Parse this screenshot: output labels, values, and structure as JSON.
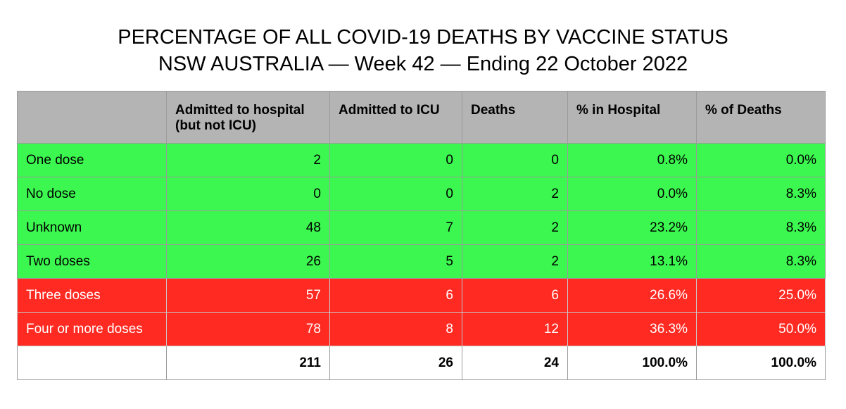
{
  "title": {
    "line1": "PERCENTAGE OF ALL COVID-19 DEATHS BY VACCINE STATUS",
    "line2": "NSW AUSTRALIA — Week 42 — Ending 22 October 2022"
  },
  "colors": {
    "header_bg": "#b4b4b4",
    "green_row": "#3cf74f",
    "red_row": "#ff2a22"
  },
  "table": {
    "columns": [
      "",
      "Admitted to hospital (but not ICU)",
      "Admitted to ICU",
      "Deaths",
      "% in Hospital",
      "% of Deaths"
    ],
    "rows": [
      {
        "label": "One dose",
        "hospital": "2",
        "icu": "0",
        "deaths": "0",
        "pct_hospital": "0.8%",
        "pct_deaths": "0.0%",
        "status": "green"
      },
      {
        "label": "No dose",
        "hospital": "0",
        "icu": "0",
        "deaths": "2",
        "pct_hospital": "0.0%",
        "pct_deaths": "8.3%",
        "status": "green"
      },
      {
        "label": "Unknown",
        "hospital": "48",
        "icu": "7",
        "deaths": "2",
        "pct_hospital": "23.2%",
        "pct_deaths": "8.3%",
        "status": "green"
      },
      {
        "label": "Two doses",
        "hospital": "26",
        "icu": "5",
        "deaths": "2",
        "pct_hospital": "13.1%",
        "pct_deaths": "8.3%",
        "status": "green"
      },
      {
        "label": "Three doses",
        "hospital": "57",
        "icu": "6",
        "deaths": "6",
        "pct_hospital": "26.6%",
        "pct_deaths": "25.0%",
        "status": "red"
      },
      {
        "label": "Four or more doses",
        "hospital": "78",
        "icu": "8",
        "deaths": "12",
        "pct_hospital": "36.3%",
        "pct_deaths": "50.0%",
        "status": "red"
      }
    ],
    "totals": {
      "label": "",
      "hospital": "211",
      "icu": "26",
      "deaths": "24",
      "pct_hospital": "100.0%",
      "pct_deaths": "100.0%"
    }
  }
}
